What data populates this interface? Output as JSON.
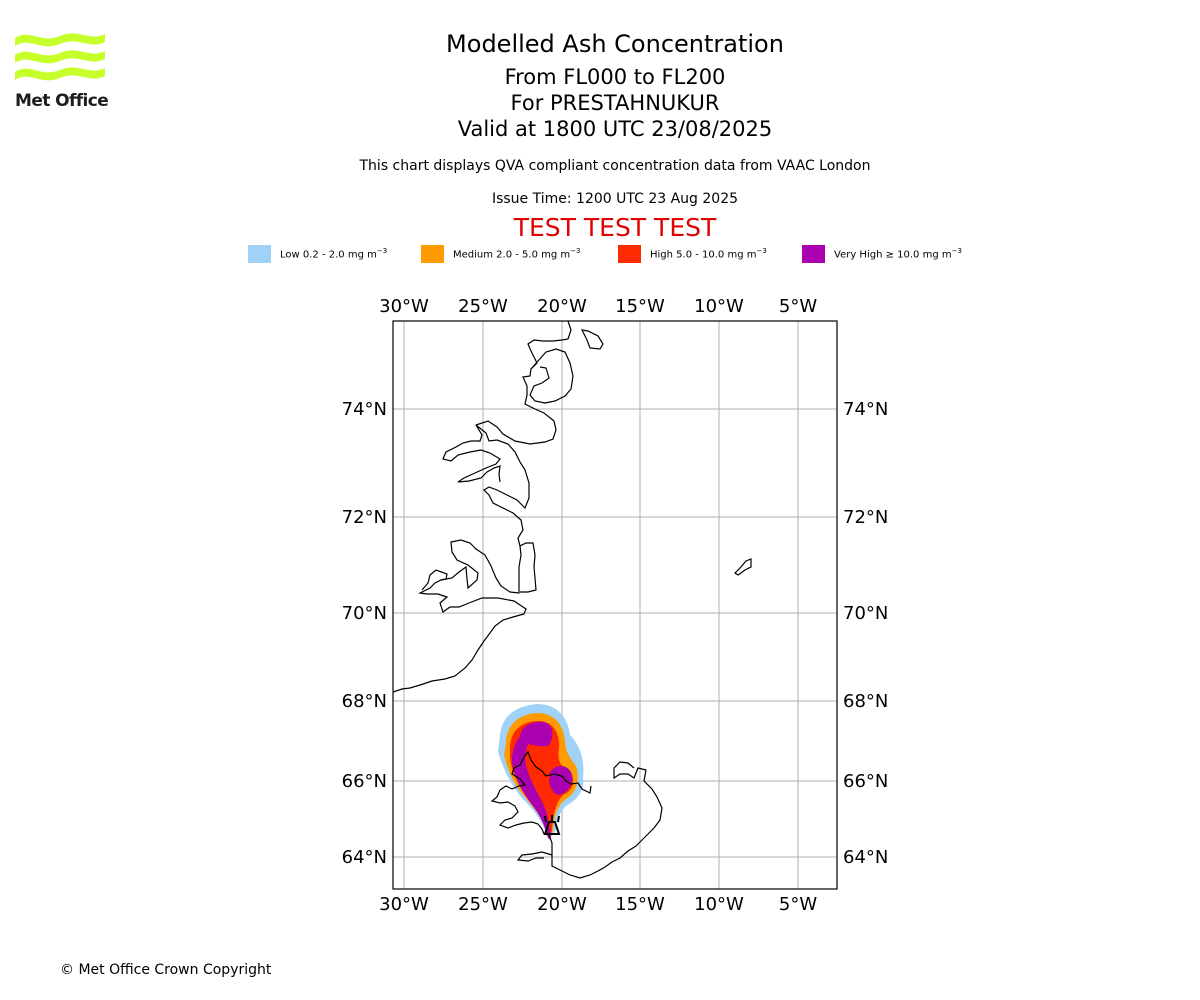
{
  "logo": {
    "text": "Met Office",
    "color": "#c6ff2a"
  },
  "titles": {
    "title": "Modelled Ash Concentration",
    "levels": "From FL000 to FL200",
    "volcano": "For PRESTAHNUKUR",
    "valid": "Valid at 1800 UTC 23/08/2025"
  },
  "description": "This chart displays QVA compliant concentration data from VAAC London",
  "issue_time": "Issue Time: 1200 UTC 23 Aug 2025",
  "test_banner": "TEST TEST TEST",
  "legend": [
    {
      "label": "Low 0.2 - 2.0 mg m",
      "unit_exp": "−3",
      "color": "#a0d2f8"
    },
    {
      "label": "Medium 2.0 - 5.0 mg m",
      "unit_exp": "−3",
      "color": "#ff9a00"
    },
    {
      "label": "High 5.0 - 10.0 mg m",
      "unit_exp": "−3",
      "color": "#ff2a00"
    },
    {
      "label": "Very High ≥ 10.0 mg m",
      "unit_exp": "−3",
      "color": "#aa00b0"
    }
  ],
  "map": {
    "lon_ticks": [
      "30°W",
      "25°W",
      "20°W",
      "15°W",
      "10°W",
      "5°W"
    ],
    "lat_ticks": [
      "74°N",
      "72°N",
      "70°N",
      "68°N",
      "66°N",
      "64°N"
    ],
    "volcano_marker": "volcano-icon"
  },
  "copyright": "© Met Office Crown Copyright"
}
